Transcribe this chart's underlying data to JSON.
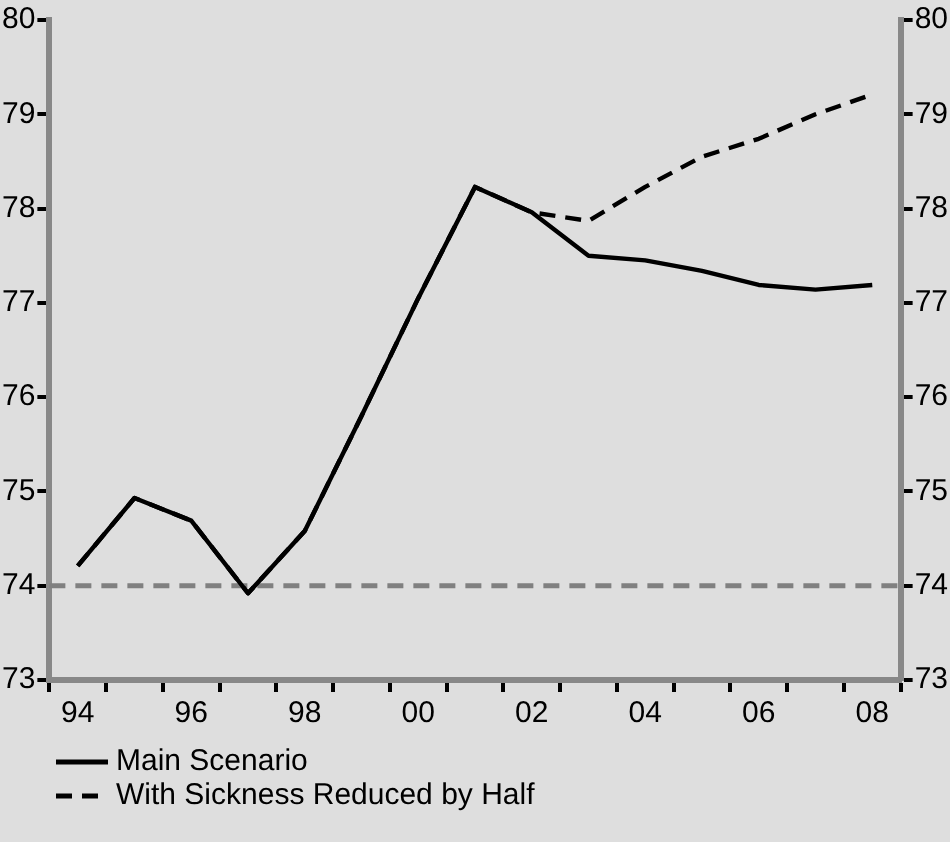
{
  "chart_data": {
    "type": "line",
    "categories": [
      "94",
      null,
      "96",
      null,
      "98",
      null,
      "00",
      null,
      "02",
      null,
      "04",
      null,
      "06",
      null,
      "08"
    ],
    "series": [
      {
        "name": "Main Scenario",
        "color": "#000000",
        "line_style": "solid",
        "values": [
          74.21,
          74.93,
          74.69,
          73.92,
          74.58,
          75.8,
          77.05,
          78.23,
          77.96,
          77.5,
          77.45,
          77.34,
          77.19,
          77.14,
          77.19
        ]
      },
      {
        "name": "With Sickness Reduced by Half",
        "color": "#000000",
        "line_style": "dashed",
        "values": [
          74.21,
          74.93,
          74.69,
          73.92,
          74.58,
          75.8,
          77.05,
          78.23,
          77.96,
          77.87,
          78.23,
          78.55,
          78.74,
          79.0,
          79.21
        ]
      }
    ],
    "ylim": [
      73,
      80
    ],
    "yticks": [
      73,
      74,
      75,
      76,
      77,
      78,
      79,
      80
    ],
    "y2lim": [
      73,
      80
    ],
    "y2ticks": [
      73,
      74,
      75,
      76,
      77,
      78,
      79,
      80
    ],
    "ref_lines": [
      {
        "axis": "y",
        "value": 74,
        "color": "#808080",
        "line_style": "dashed"
      }
    ],
    "grid": false,
    "legend": "bottom left",
    "marker": "none"
  }
}
